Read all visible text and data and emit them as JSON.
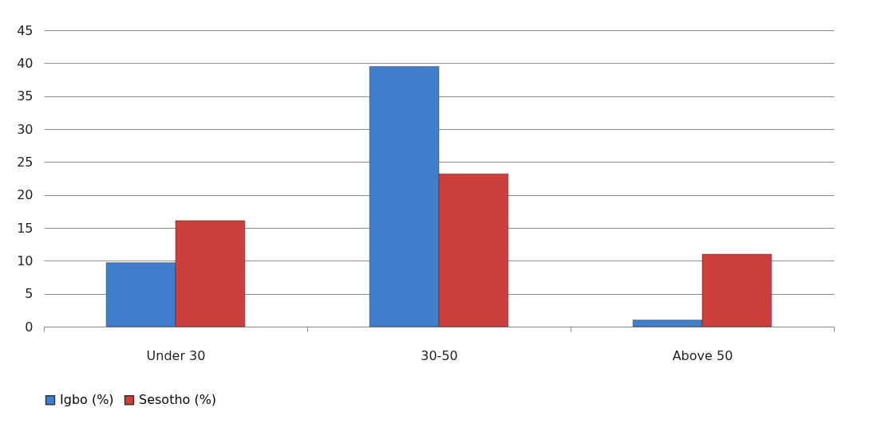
{
  "chart_data": {
    "type": "bar",
    "categories": [
      "Under 30",
      "30-50",
      "Above 50"
    ],
    "series": [
      {
        "name": "Igbo (%)",
        "color": "#3f7fcc",
        "values": [
          9.7,
          39.5,
          1.0
        ]
      },
      {
        "name": "Sesotho (%)",
        "color": "#cc3f3c",
        "values": [
          16.1,
          23.2,
          11.0
        ]
      }
    ],
    "ylim": [
      0,
      45
    ],
    "yticks": [
      0,
      5,
      10,
      15,
      20,
      25,
      30,
      35,
      40,
      45
    ],
    "grid": "y",
    "legend": "bottom"
  }
}
